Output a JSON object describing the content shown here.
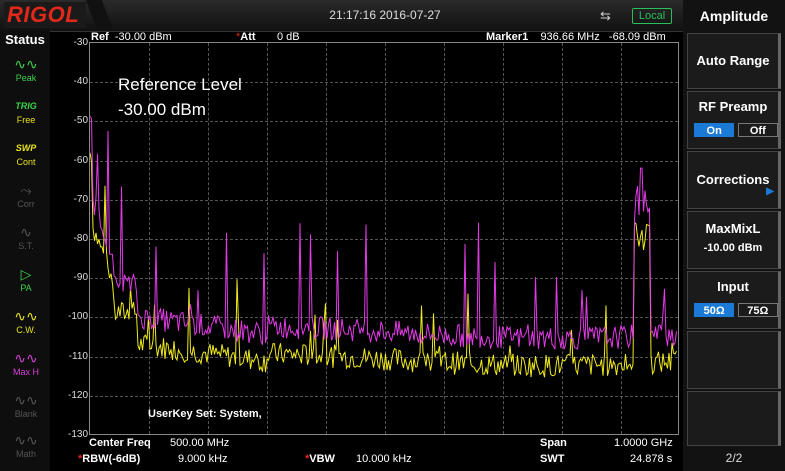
{
  "header": {
    "logo": "RIGOL",
    "datetime": "21:17:16 2016-07-27",
    "usb_icon": "usb-icon",
    "local": "Local"
  },
  "status": {
    "title": "Status",
    "items": [
      {
        "icon": "wave-icon",
        "label": "Peak",
        "state": "green"
      },
      {
        "icon": "trig-icon",
        "label": "Free",
        "top": "TRIG",
        "state": "yellow"
      },
      {
        "icon": "sweep-icon",
        "label": "Cont",
        "top": "SWP",
        "state": "green"
      },
      {
        "icon": "corr-icon",
        "label": "Corr",
        "state": "off"
      },
      {
        "icon": "st-icon",
        "label": "S.T.",
        "state": "off"
      },
      {
        "icon": "pa-icon",
        "label": "PA",
        "state": "green"
      },
      {
        "icon": "cw-icon",
        "label": "C.W.",
        "state": "yellow"
      },
      {
        "icon": "maxh-icon",
        "label": "Max H",
        "state": "mag"
      },
      {
        "icon": "blank-icon",
        "label": "Blank",
        "state": "off"
      },
      {
        "icon": "math-icon",
        "label": "Math",
        "state": "off"
      }
    ]
  },
  "plot_header": {
    "ref_label": "Ref",
    "ref_value": "-30.00 dBm",
    "att_label": "Att",
    "att_value": "0 dB",
    "marker_label": "Marker1",
    "marker_freq": "936.66 MHz",
    "marker_level": "-68.09 dBm"
  },
  "y_ticks": [
    "-30",
    "-40",
    "-50",
    "-60",
    "-70",
    "-80",
    "-90",
    "-100",
    "-110",
    "-120",
    "-130"
  ],
  "overlay": {
    "reflevel_title": "Reference Level",
    "reflevel_value": "-30.00 dBm",
    "userkey": "UserKey Set:   System,"
  },
  "footer": {
    "center_label": "Center Freq",
    "center_value": "500.00 MHz",
    "span_label": "Span",
    "span_value": "1.0000 GHz",
    "rbw_label": "RBW(-6dB)",
    "rbw_value": "9.000 kHz",
    "vbw_label": "VBW",
    "vbw_value": "10.000 kHz",
    "swt_label": "SWT",
    "swt_value": "24.878 s"
  },
  "softkeys": {
    "title": "Amplitude",
    "auto_range": "Auto Range",
    "rf_preamp": "RF Preamp",
    "preamp_on": "On",
    "preamp_off": "Off",
    "corrections": "Corrections",
    "maxmix": "MaxMixL",
    "maxmix_value": "-10.00 dBm",
    "input": "Input",
    "input_50": "50Ω",
    "input_75": "75Ω",
    "page": "2/2"
  },
  "colors": {
    "trace_yellow": "#f0ea1c",
    "trace_magenta": "#e23be6",
    "accent_blue": "#1b7ad6",
    "logo_red": "#e0281b"
  }
}
